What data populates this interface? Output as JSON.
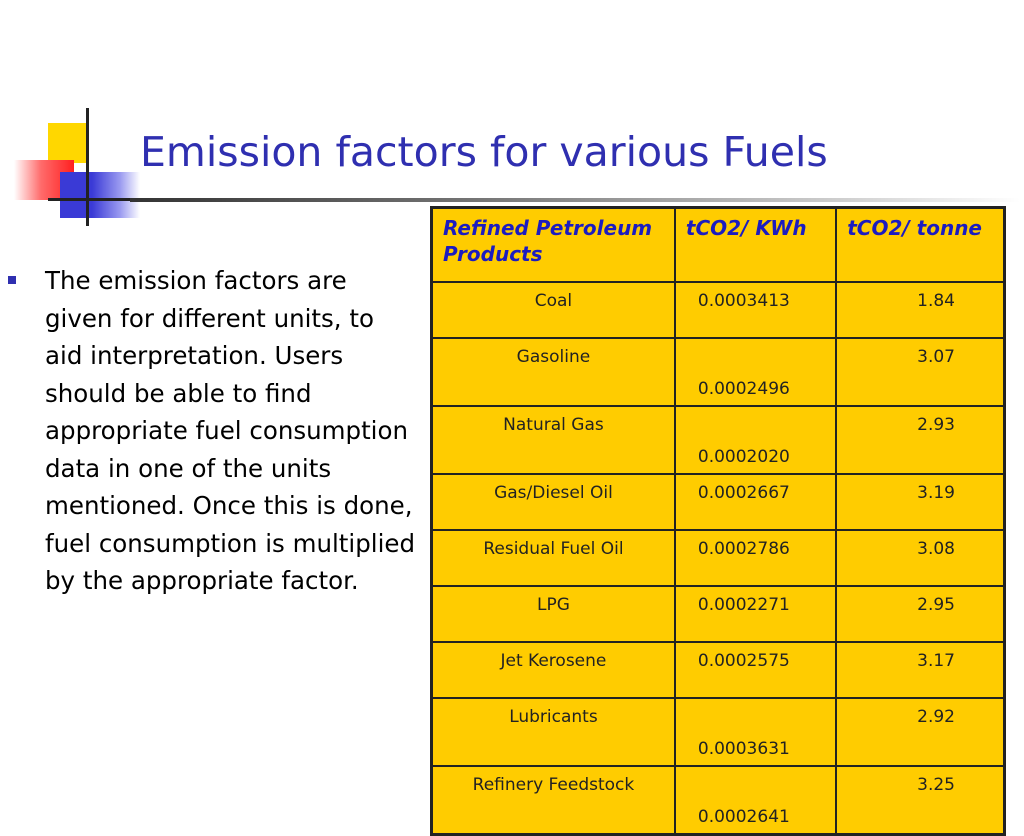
{
  "slide": {
    "title": "Emission factors for various Fuels",
    "bullet": "The emission factors are given for different units, to aid interpretation. Users should be able to find appropriate fuel consumption data in one of the units mentioned. Once this is done, fuel consumption is multiplied by the appropriate factor."
  },
  "table": {
    "headers": [
      "Refined Petroleum Products",
      "tCO2/ KWh",
      "tCO2/ tonne"
    ],
    "rows": [
      {
        "name": "Coal",
        "kwh": "0.0003413",
        "tonne": "1.84"
      },
      {
        "name": "Gasoline",
        "kwh": "0.0002496",
        "tonne": "3.07"
      },
      {
        "name": "Natural Gas",
        "kwh": "0.0002020",
        "tonne": "2.93"
      },
      {
        "name": "Gas/Diesel Oil",
        "kwh": "0.0002667",
        "tonne": "3.19"
      },
      {
        "name": "Residual Fuel Oil",
        "kwh": "0.0002786",
        "tonne": "3.08"
      },
      {
        "name": "LPG",
        "kwh": "0.0002271",
        "tonne": "2.95"
      },
      {
        "name": "Jet Kerosene",
        "kwh": "0.0002575",
        "tonne": "3.17"
      },
      {
        "name": "Lubricants",
        "kwh": "0.0003631",
        "tonne": "2.92"
      },
      {
        "name": "Refinery Feedstock",
        "kwh": "0.0002641",
        "tonne": "3.25"
      }
    ]
  },
  "colors": {
    "title": "#2f2fb0",
    "table_fill": "#ffcc00",
    "header_text": "#1c1cc0"
  }
}
